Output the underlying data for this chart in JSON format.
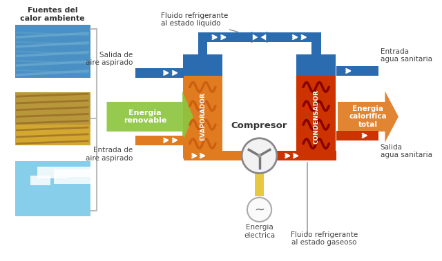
{
  "title": "",
  "labels": {
    "fuentes": "Fuentes del\ncalor ambiente",
    "fluido_liquido": "Fluido refrigerante\nal estado liquido",
    "salida_aire": "Salida de\naire aspirado",
    "entrada_aire": "Entrada de\naire aspirado",
    "energia_renovable": "Energia\nrenovable",
    "energia_calorifica": "Energia\ncalorifica\ntotal",
    "evaporador": "EVAPORADOR",
    "condensador": "CONDENSADOR",
    "compresor": "Compresor",
    "energia_electrica": "Energia\nelectrica",
    "entrada_agua": "Entrada\nagua sanitaria",
    "salida_agua": "Salida\nagua sanitaria",
    "fluido_gaseoso": "Fluido refrigerante\nal estado gaseoso"
  },
  "bg_color": "#ffffff",
  "text_color": "#444444",
  "blue_pipe": "#2B6CB0",
  "orange_pipe": "#E07B20",
  "red_pipe": "#CC3300",
  "yellow_pipe": "#E8C840",
  "green_arrow": "#8DC63F",
  "evap_body": "#E07B20",
  "cond_body": "#CC3300",
  "water_blue": "#4A90C4",
  "sky_color": "#87CEEB"
}
